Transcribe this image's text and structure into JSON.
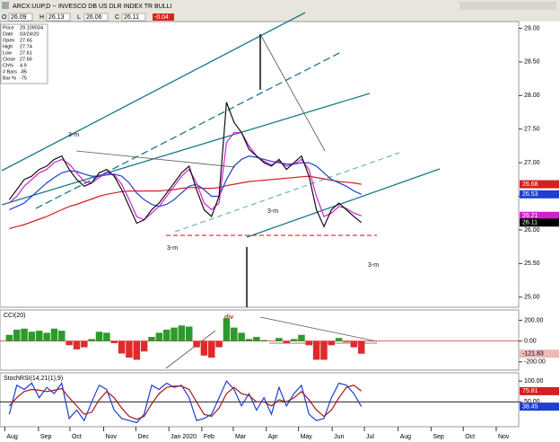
{
  "toolbar": {
    "title": "ARCX:UUP,D -- INVESCO DB US DLR INDEX TR BULLI",
    "quote": [
      {
        "label": "O",
        "value": 26.09
      },
      {
        "label": "H",
        "value": 26.13
      },
      {
        "label": "L",
        "value": 26.06
      },
      {
        "label": "C",
        "value": 26.11
      }
    ],
    "change": -0.04
  },
  "info": [
    {
      "label": "Price",
      "value": 29.109034
    },
    {
      "label": "Date",
      "value": "03/24/20"
    },
    {
      "label": "Open",
      "value": 27.65
    },
    {
      "label": "High",
      "value": 27.74
    },
    {
      "label": "Low",
      "value": 27.61
    },
    {
      "label": "Close",
      "value": 27.66
    },
    {
      "label": "Ch%",
      "value": 4.9
    },
    {
      "label": "# Bars",
      "value": -85
    },
    {
      "label": "Bar %",
      "value": -75
    }
  ],
  "annotations": [
    "3-m",
    "3-m",
    "3-m",
    "3-m",
    "div"
  ],
  "chart_data": [
    {
      "type": "line",
      "ylim": [
        24.85,
        29.1
      ],
      "yticks": [
        {
          "value": 25,
          "label": "25.00"
        },
        {
          "value": 25.5,
          "label": "25.50"
        },
        {
          "value": 26,
          "label": "26.00"
        },
        {
          "value": 26.5,
          "label": "26.50"
        },
        {
          "value": 27,
          "label": "27.00"
        },
        {
          "value": 27.5,
          "label": "27.50"
        },
        {
          "value": 28,
          "label": "28.00"
        },
        {
          "value": 28.5,
          "label": "28.50"
        },
        {
          "value": 29,
          "label": "29.00"
        }
      ],
      "grid": false,
      "series": [
        {
          "color": "#d42020",
          "values": [
            26.02,
            26.05,
            26.08,
            26.12,
            26.16,
            26.2,
            26.25,
            26.3,
            26.35,
            26.38,
            26.42,
            26.46,
            26.5,
            26.53,
            26.55,
            26.57,
            26.58,
            26.58,
            26.58,
            26.58,
            26.58,
            26.59,
            26.6,
            26.62,
            26.63,
            26.63,
            26.62,
            26.62,
            26.63,
            26.66,
            26.68,
            26.7,
            26.72,
            26.73,
            26.74,
            26.75,
            26.76,
            26.77,
            26.78,
            26.79,
            26.8,
            26.78,
            26.76,
            26.74,
            26.72,
            26.71,
            26.7,
            26.68
          ]
        },
        {
          "color": "#1f3fd0",
          "values": [
            26.3,
            26.35,
            26.4,
            26.5,
            26.6,
            26.7,
            26.78,
            26.85,
            26.88,
            26.87,
            26.83,
            26.8,
            26.8,
            26.82,
            26.83,
            26.8,
            26.7,
            26.55,
            26.45,
            26.38,
            26.35,
            26.38,
            26.45,
            26.55,
            26.65,
            26.68,
            26.6,
            26.5,
            26.5,
            26.75,
            26.95,
            27.05,
            27.1,
            27.08,
            27.05,
            27.02,
            27.0,
            26.98,
            26.98,
            27.0,
            27.0,
            26.95,
            26.85,
            26.75,
            26.7,
            26.65,
            26.58,
            26.53
          ]
        },
        {
          "color": "#d020d0",
          "values": [
            26.4,
            26.5,
            26.65,
            26.75,
            26.85,
            26.9,
            27.0,
            27.05,
            26.98,
            26.85,
            26.72,
            26.7,
            26.78,
            26.85,
            26.82,
            26.68,
            26.45,
            26.2,
            26.15,
            26.25,
            26.35,
            26.5,
            26.65,
            26.8,
            26.9,
            26.7,
            26.4,
            26.3,
            26.4,
            27.3,
            27.45,
            27.45,
            27.25,
            27.1,
            27.02,
            26.97,
            27.02,
            26.95,
            26.98,
            27.05,
            26.9,
            26.5,
            26.2,
            26.25,
            26.35,
            26.32,
            26.25,
            26.21
          ]
        },
        {
          "color": "#111111",
          "values": [
            26.45,
            26.6,
            26.75,
            26.8,
            26.9,
            26.95,
            27.05,
            27.1,
            26.9,
            26.75,
            26.65,
            26.7,
            26.85,
            26.9,
            26.8,
            26.6,
            26.35,
            26.1,
            26.15,
            26.3,
            26.4,
            26.55,
            26.7,
            26.85,
            26.95,
            26.6,
            26.3,
            26.2,
            26.5,
            27.9,
            27.6,
            27.45,
            27.2,
            27.1,
            27.0,
            26.95,
            27.05,
            26.9,
            27.0,
            27.1,
            26.8,
            26.3,
            26.05,
            26.3,
            26.4,
            26.3,
            26.2,
            26.11
          ]
        }
      ],
      "last_labels": [
        {
          "value": 26.68,
          "color": "#d42020"
        },
        {
          "value": 26.53,
          "color": "#1f3fd0"
        },
        {
          "value": 26.21,
          "color": "#d020d0"
        },
        {
          "value": 26.11,
          "color": "#000000"
        }
      ]
    },
    {
      "type": "bar",
      "title": "CCI(20)",
      "ylim": [
        -280,
        300
      ],
      "yticks": [
        {
          "value": 200,
          "label": "200.00"
        },
        {
          "value": 0,
          "label": "0.00"
        },
        {
          "value": -200,
          "label": "-200.00"
        }
      ],
      "refline": 0,
      "refline_color": "#e03030",
      "color_pos": "#2e9a2e",
      "color_neg": "#e02a2a",
      "values": [
        60,
        110,
        120,
        90,
        100,
        80,
        120,
        100,
        -40,
        -80,
        -60,
        20,
        90,
        80,
        -20,
        -120,
        -160,
        -180,
        -100,
        40,
        80,
        110,
        130,
        150,
        140,
        -60,
        -140,
        -160,
        -60,
        220,
        130,
        80,
        20,
        40,
        10,
        0,
        30,
        -20,
        20,
        60,
        -40,
        -180,
        -180,
        -40,
        30,
        -10,
        -60,
        -121.83
      ],
      "last_labels": [
        {
          "value": -121.83,
          "color": "#f0b8b8"
        }
      ]
    },
    {
      "type": "line",
      "title": "StochRSI(14,21(1),9)",
      "ylim": [
        -10,
        120
      ],
      "yticks": [
        {
          "value": 100,
          "label": "100.00"
        },
        {
          "value": 50,
          "label": "50.00"
        }
      ],
      "refline": 50,
      "refline_color": "#000000",
      "xlim": [
        -1,
        68
      ],
      "xticks": [
        {
          "value": -0.6,
          "label": "Aug"
        },
        {
          "value": 3.9,
          "label": "Sep"
        },
        {
          "value": 8.1,
          "label": "Oct"
        },
        {
          "value": 12.6,
          "label": "Nov"
        },
        {
          "value": 16.9,
          "label": "Dec"
        },
        {
          "value": 21.3,
          "label": "Jan 2020"
        },
        {
          "value": 25.7,
          "label": "Feb"
        },
        {
          "value": 29.9,
          "label": "Mar"
        },
        {
          "value": 34.3,
          "label": "Apr"
        },
        {
          "value": 38.6,
          "label": "May"
        },
        {
          "value": 43.1,
          "label": "Jun"
        },
        {
          "value": 47.4,
          "label": "Jul"
        },
        {
          "value": 51.9,
          "label": "Aug"
        },
        {
          "value": 56.3,
          "label": "Sep"
        },
        {
          "value": 60.6,
          "label": "Oct"
        },
        {
          "value": 65,
          "label": "Nov"
        }
      ],
      "series": [
        {
          "color": "#1f3fd0",
          "values": [
            20,
            90,
            80,
            95,
            60,
            85,
            70,
            95,
            10,
            30,
            5,
            50,
            90,
            80,
            30,
            10,
            5,
            0,
            20,
            90,
            80,
            95,
            85,
            90,
            60,
            5,
            10,
            20,
            60,
            100,
            80,
            40,
            70,
            30,
            60,
            20,
            85,
            40,
            70,
            90,
            20,
            5,
            10,
            60,
            95,
            90,
            70,
            38.45
          ]
        },
        {
          "color": "#a01818",
          "values": [
            40,
            60,
            75,
            80,
            78,
            75,
            78,
            82,
            60,
            40,
            20,
            25,
            55,
            75,
            60,
            35,
            15,
            8,
            15,
            45,
            70,
            85,
            88,
            88,
            80,
            50,
            20,
            15,
            35,
            70,
            85,
            70,
            65,
            50,
            50,
            40,
            55,
            50,
            60,
            75,
            55,
            30,
            15,
            30,
            60,
            85,
            90,
            75.81
          ]
        }
      ],
      "last_labels": [
        {
          "value": 75.81,
          "color": "#d42020"
        },
        {
          "value": 38.45,
          "color": "#1f3fd0"
        }
      ]
    }
  ]
}
